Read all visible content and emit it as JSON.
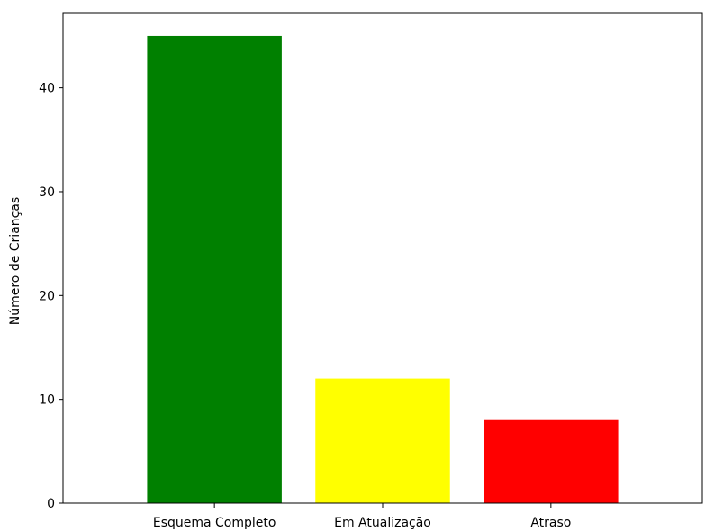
{
  "chart_data": {
    "type": "bar",
    "title": "",
    "xlabel": "",
    "ylabel": "Número de Crianças",
    "categories": [
      "Esquema Completo",
      "Em Atualização",
      "Atraso"
    ],
    "values": [
      45,
      12,
      8
    ],
    "bar_colors": [
      "#008000",
      "#ffff00",
      "#ff0000"
    ],
    "ylim": [
      0,
      47.25
    ],
    "yticks": [
      0,
      10,
      20,
      30,
      40
    ],
    "grid": false,
    "legend": "none"
  }
}
